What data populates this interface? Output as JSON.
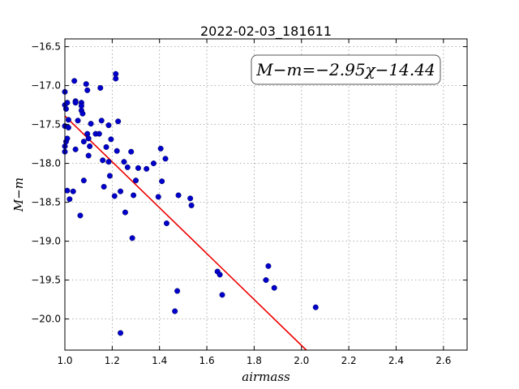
{
  "chart_data": {
    "type": "scatter",
    "title": "2022-02-03_181611",
    "xlabel": "airmass",
    "ylabel": "M−m",
    "xlim": [
      1.0,
      2.7
    ],
    "ylim": [
      -20.4,
      -16.4
    ],
    "y_inverted": true,
    "grid": true,
    "x_ticks": [
      1.0,
      1.2,
      1.4,
      1.6,
      1.8,
      2.0,
      2.2,
      2.4,
      2.6
    ],
    "x_tick_labels": [
      "1.0",
      "1.2",
      "1.4",
      "1.6",
      "1.8",
      "2.0",
      "2.2",
      "2.4",
      "2.6"
    ],
    "y_ticks": [
      -16.5,
      -17.0,
      -17.5,
      -18.0,
      -18.5,
      -19.0,
      -19.5,
      -20.0
    ],
    "y_tick_labels": [
      "−16.5",
      "−17.0",
      "−17.5",
      "−18.0",
      "−18.5",
      "−19.0",
      "−19.5",
      "−20.0"
    ],
    "annotation": "M−m=−2.95χ−14.44",
    "annotation_position": "top-right",
    "fit": {
      "slope": -2.95,
      "intercept": -14.44,
      "x_start": 1.0,
      "x_end": 2.7,
      "color": "#ee0000"
    },
    "point_color": "#0000cc",
    "points": [
      [
        1.0,
        -17.08
      ],
      [
        1.0,
        -17.25
      ],
      [
        1.0,
        -17.52
      ],
      [
        1.0,
        -17.78
      ],
      [
        1.0,
        -17.85
      ],
      [
        1.005,
        -17.3
      ],
      [
        1.005,
        -17.72
      ],
      [
        1.01,
        -17.22
      ],
      [
        1.01,
        -17.68
      ],
      [
        1.01,
        -18.35
      ],
      [
        1.015,
        -17.44
      ],
      [
        1.015,
        -17.54
      ],
      [
        1.02,
        -18.46
      ],
      [
        1.035,
        -18.36
      ],
      [
        1.04,
        -16.94
      ],
      [
        1.045,
        -17.2
      ],
      [
        1.045,
        -17.22
      ],
      [
        1.045,
        -17.82
      ],
      [
        1.055,
        -17.45
      ],
      [
        1.065,
        -18.67
      ],
      [
        1.07,
        -17.32
      ],
      [
        1.07,
        -17.22
      ],
      [
        1.07,
        -17.26
      ],
      [
        1.075,
        -17.36
      ],
      [
        1.08,
        -18.22
      ],
      [
        1.08,
        -17.72
      ],
      [
        1.09,
        -16.98
      ],
      [
        1.095,
        -17.06
      ],
      [
        1.095,
        -17.62
      ],
      [
        1.1,
        -17.68
      ],
      [
        1.1,
        -17.9
      ],
      [
        1.105,
        -17.78
      ],
      [
        1.11,
        -17.49
      ],
      [
        1.13,
        -17.62
      ],
      [
        1.145,
        -17.62
      ],
      [
        1.15,
        -17.03
      ],
      [
        1.155,
        -17.45
      ],
      [
        1.16,
        -17.96
      ],
      [
        1.165,
        -18.3
      ],
      [
        1.175,
        -17.79
      ],
      [
        1.185,
        -17.51
      ],
      [
        1.185,
        -17.98
      ],
      [
        1.19,
        -18.16
      ],
      [
        1.195,
        -17.69
      ],
      [
        1.21,
        -18.42
      ],
      [
        1.215,
        -16.85
      ],
      [
        1.215,
        -16.91
      ],
      [
        1.22,
        -17.84
      ],
      [
        1.225,
        -17.46
      ],
      [
        1.235,
        -20.18
      ],
      [
        1.235,
        -18.36
      ],
      [
        1.25,
        -17.98
      ],
      [
        1.255,
        -18.63
      ],
      [
        1.265,
        -18.05
      ],
      [
        1.28,
        -17.85
      ],
      [
        1.285,
        -18.96
      ],
      [
        1.29,
        -18.41
      ],
      [
        1.3,
        -18.22
      ],
      [
        1.31,
        -18.06
      ],
      [
        1.345,
        -18.07
      ],
      [
        1.375,
        -18.0
      ],
      [
        1.395,
        -18.43
      ],
      [
        1.405,
        -17.81
      ],
      [
        1.41,
        -18.23
      ],
      [
        1.425,
        -17.94
      ],
      [
        1.43,
        -18.77
      ],
      [
        1.465,
        -19.9
      ],
      [
        1.475,
        -19.64
      ],
      [
        1.48,
        -18.41
      ],
      [
        1.53,
        -18.45
      ],
      [
        1.535,
        -18.54
      ],
      [
        1.645,
        -19.39
      ],
      [
        1.655,
        -19.43
      ],
      [
        1.665,
        -19.69
      ],
      [
        1.85,
        -19.5
      ],
      [
        1.86,
        -19.32
      ],
      [
        1.885,
        -19.6
      ],
      [
        2.06,
        -19.85
      ]
    ]
  }
}
